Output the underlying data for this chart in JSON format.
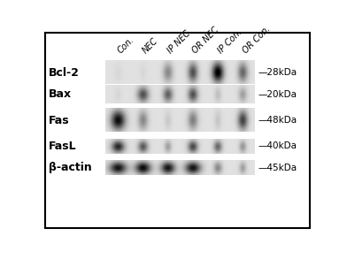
{
  "lane_labels": [
    "Con.",
    "NEC",
    "IP NEC",
    "OR NEC",
    "IP Con.",
    "OR Con."
  ],
  "row_labels": [
    "Bcl-2",
    "Bax",
    "Fas",
    "FasL",
    "β-actin"
  ],
  "kda_labels": [
    "28kDa",
    "20kDa",
    "48kDa",
    "40kDa",
    "45kDa"
  ],
  "background_color": "#ffffff",
  "border_color": "#000000",
  "band_data": {
    "Bcl-2": [
      0.04,
      0.04,
      0.38,
      0.62,
      1.0,
      0.52
    ],
    "Bax": [
      0.05,
      0.62,
      0.55,
      0.62,
      0.15,
      0.28
    ],
    "Fas": [
      0.92,
      0.38,
      0.1,
      0.42,
      0.12,
      0.68
    ],
    "FasL": [
      0.8,
      0.58,
      0.28,
      0.65,
      0.52,
      0.32
    ],
    "b-actin": [
      0.88,
      0.92,
      0.88,
      0.88,
      0.38,
      0.28
    ]
  },
  "band_widths": {
    "Bcl-2": [
      0.6,
      0.5,
      0.7,
      0.7,
      0.8,
      0.7
    ],
    "Bax": [
      0.5,
      0.8,
      0.7,
      0.7,
      0.5,
      0.6
    ],
    "Fas": [
      1.0,
      0.7,
      0.5,
      0.7,
      0.5,
      0.7
    ],
    "FasL": [
      0.9,
      0.7,
      0.5,
      0.7,
      0.6,
      0.5
    ],
    "b-actin": [
      1.2,
      1.1,
      1.0,
      1.1,
      0.6,
      0.5
    ]
  },
  "gel_bg_lightness": 0.88,
  "label_fontsize": 9,
  "kda_fontsize": 7.5,
  "lane_label_fontsize": 7
}
